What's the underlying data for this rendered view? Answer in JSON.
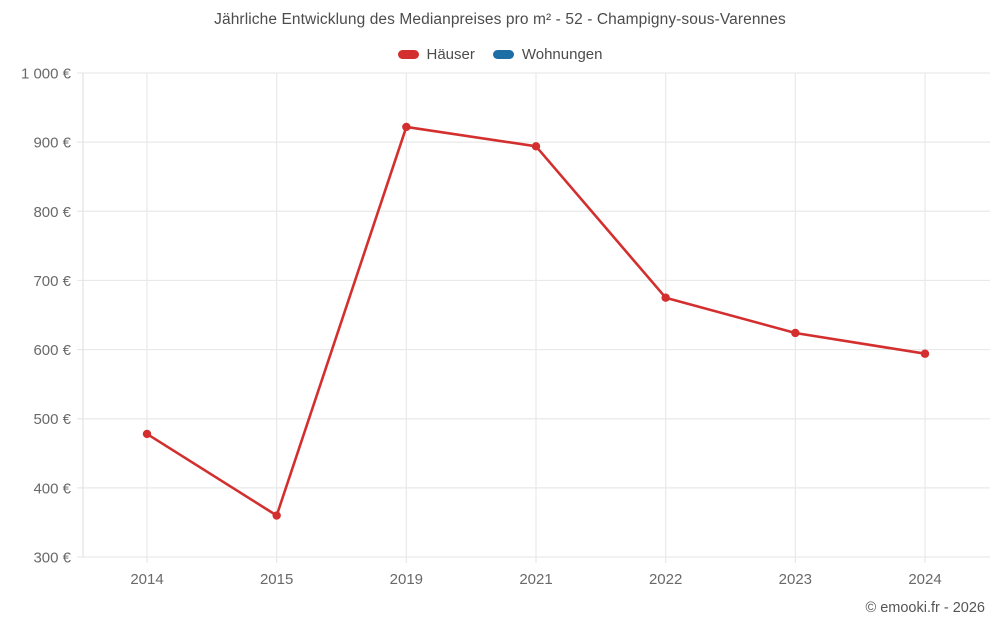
{
  "chart": {
    "title": "Jährliche Entwicklung des Medianpreises pro m² - 52 - Champigny-sous-Varennes",
    "footer": "© emooki.fr - 2026"
  },
  "legend": [
    {
      "label": "Häuser",
      "color": "#d32f2f"
    },
    {
      "label": "Wohnungen",
      "color": "#1c6ea4"
    }
  ],
  "chart_data": {
    "type": "line",
    "title": "Jährliche Entwicklung des Medianpreises pro m² - 52 - Champigny-sous-Varennes",
    "categories": [
      "2014",
      "2015",
      "2019",
      "2021",
      "2022",
      "2023",
      "2024"
    ],
    "series": [
      {
        "name": "Häuser",
        "color": "#d32f2f",
        "values": [
          478,
          360,
          922,
          894,
          675,
          624,
          594
        ]
      },
      {
        "name": "Wohnungen",
        "color": "#1c6ea4",
        "values": []
      }
    ],
    "xlabel": "",
    "ylabel": "",
    "ylim": [
      300,
      1000
    ],
    "ytick_step": 100,
    "ytick_labels": [
      "300 €",
      "400 €",
      "500 €",
      "600 €",
      "700 €",
      "800 €",
      "900 €",
      "1 000 €"
    ],
    "grid": true,
    "legend_position": "top",
    "marker": "circle",
    "gridline_color": "#e9e9e9"
  }
}
